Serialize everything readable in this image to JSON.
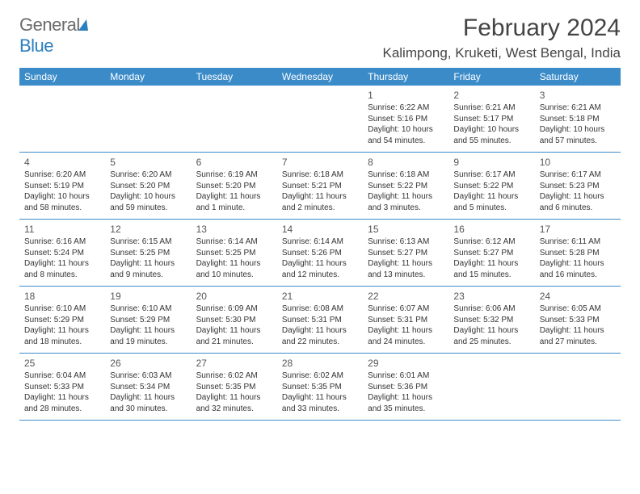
{
  "logo": {
    "part1": "General",
    "part2": "Blue"
  },
  "title": "February 2024",
  "location": "Kalimpong, Kruketi, West Bengal, India",
  "styling": {
    "header_bg": "#3b8bc9",
    "header_text": "#ffffff",
    "page_bg": "#ffffff",
    "text_color": "#333333",
    "logo_gray": "#6b6b6b",
    "logo_blue": "#2a7fbf",
    "title_fontsize": 30,
    "location_fontsize": 17,
    "dayhead_fontsize": 12,
    "cell_fontsize": 10,
    "border_color": "#3b8bc9"
  },
  "day_names": [
    "Sunday",
    "Monday",
    "Tuesday",
    "Wednesday",
    "Thursday",
    "Friday",
    "Saturday"
  ],
  "weeks": [
    [
      null,
      null,
      null,
      null,
      {
        "n": "1",
        "sr": "Sunrise: 6:22 AM",
        "ss": "Sunset: 5:16 PM",
        "d1": "Daylight: 10 hours",
        "d2": "and 54 minutes."
      },
      {
        "n": "2",
        "sr": "Sunrise: 6:21 AM",
        "ss": "Sunset: 5:17 PM",
        "d1": "Daylight: 10 hours",
        "d2": "and 55 minutes."
      },
      {
        "n": "3",
        "sr": "Sunrise: 6:21 AM",
        "ss": "Sunset: 5:18 PM",
        "d1": "Daylight: 10 hours",
        "d2": "and 57 minutes."
      }
    ],
    [
      {
        "n": "4",
        "sr": "Sunrise: 6:20 AM",
        "ss": "Sunset: 5:19 PM",
        "d1": "Daylight: 10 hours",
        "d2": "and 58 minutes."
      },
      {
        "n": "5",
        "sr": "Sunrise: 6:20 AM",
        "ss": "Sunset: 5:20 PM",
        "d1": "Daylight: 10 hours",
        "d2": "and 59 minutes."
      },
      {
        "n": "6",
        "sr": "Sunrise: 6:19 AM",
        "ss": "Sunset: 5:20 PM",
        "d1": "Daylight: 11 hours",
        "d2": "and 1 minute."
      },
      {
        "n": "7",
        "sr": "Sunrise: 6:18 AM",
        "ss": "Sunset: 5:21 PM",
        "d1": "Daylight: 11 hours",
        "d2": "and 2 minutes."
      },
      {
        "n": "8",
        "sr": "Sunrise: 6:18 AM",
        "ss": "Sunset: 5:22 PM",
        "d1": "Daylight: 11 hours",
        "d2": "and 3 minutes."
      },
      {
        "n": "9",
        "sr": "Sunrise: 6:17 AM",
        "ss": "Sunset: 5:22 PM",
        "d1": "Daylight: 11 hours",
        "d2": "and 5 minutes."
      },
      {
        "n": "10",
        "sr": "Sunrise: 6:17 AM",
        "ss": "Sunset: 5:23 PM",
        "d1": "Daylight: 11 hours",
        "d2": "and 6 minutes."
      }
    ],
    [
      {
        "n": "11",
        "sr": "Sunrise: 6:16 AM",
        "ss": "Sunset: 5:24 PM",
        "d1": "Daylight: 11 hours",
        "d2": "and 8 minutes."
      },
      {
        "n": "12",
        "sr": "Sunrise: 6:15 AM",
        "ss": "Sunset: 5:25 PM",
        "d1": "Daylight: 11 hours",
        "d2": "and 9 minutes."
      },
      {
        "n": "13",
        "sr": "Sunrise: 6:14 AM",
        "ss": "Sunset: 5:25 PM",
        "d1": "Daylight: 11 hours",
        "d2": "and 10 minutes."
      },
      {
        "n": "14",
        "sr": "Sunrise: 6:14 AM",
        "ss": "Sunset: 5:26 PM",
        "d1": "Daylight: 11 hours",
        "d2": "and 12 minutes."
      },
      {
        "n": "15",
        "sr": "Sunrise: 6:13 AM",
        "ss": "Sunset: 5:27 PM",
        "d1": "Daylight: 11 hours",
        "d2": "and 13 minutes."
      },
      {
        "n": "16",
        "sr": "Sunrise: 6:12 AM",
        "ss": "Sunset: 5:27 PM",
        "d1": "Daylight: 11 hours",
        "d2": "and 15 minutes."
      },
      {
        "n": "17",
        "sr": "Sunrise: 6:11 AM",
        "ss": "Sunset: 5:28 PM",
        "d1": "Daylight: 11 hours",
        "d2": "and 16 minutes."
      }
    ],
    [
      {
        "n": "18",
        "sr": "Sunrise: 6:10 AM",
        "ss": "Sunset: 5:29 PM",
        "d1": "Daylight: 11 hours",
        "d2": "and 18 minutes."
      },
      {
        "n": "19",
        "sr": "Sunrise: 6:10 AM",
        "ss": "Sunset: 5:29 PM",
        "d1": "Daylight: 11 hours",
        "d2": "and 19 minutes."
      },
      {
        "n": "20",
        "sr": "Sunrise: 6:09 AM",
        "ss": "Sunset: 5:30 PM",
        "d1": "Daylight: 11 hours",
        "d2": "and 21 minutes."
      },
      {
        "n": "21",
        "sr": "Sunrise: 6:08 AM",
        "ss": "Sunset: 5:31 PM",
        "d1": "Daylight: 11 hours",
        "d2": "and 22 minutes."
      },
      {
        "n": "22",
        "sr": "Sunrise: 6:07 AM",
        "ss": "Sunset: 5:31 PM",
        "d1": "Daylight: 11 hours",
        "d2": "and 24 minutes."
      },
      {
        "n": "23",
        "sr": "Sunrise: 6:06 AM",
        "ss": "Sunset: 5:32 PM",
        "d1": "Daylight: 11 hours",
        "d2": "and 25 minutes."
      },
      {
        "n": "24",
        "sr": "Sunrise: 6:05 AM",
        "ss": "Sunset: 5:33 PM",
        "d1": "Daylight: 11 hours",
        "d2": "and 27 minutes."
      }
    ],
    [
      {
        "n": "25",
        "sr": "Sunrise: 6:04 AM",
        "ss": "Sunset: 5:33 PM",
        "d1": "Daylight: 11 hours",
        "d2": "and 28 minutes."
      },
      {
        "n": "26",
        "sr": "Sunrise: 6:03 AM",
        "ss": "Sunset: 5:34 PM",
        "d1": "Daylight: 11 hours",
        "d2": "and 30 minutes."
      },
      {
        "n": "27",
        "sr": "Sunrise: 6:02 AM",
        "ss": "Sunset: 5:35 PM",
        "d1": "Daylight: 11 hours",
        "d2": "and 32 minutes."
      },
      {
        "n": "28",
        "sr": "Sunrise: 6:02 AM",
        "ss": "Sunset: 5:35 PM",
        "d1": "Daylight: 11 hours",
        "d2": "and 33 minutes."
      },
      {
        "n": "29",
        "sr": "Sunrise: 6:01 AM",
        "ss": "Sunset: 5:36 PM",
        "d1": "Daylight: 11 hours",
        "d2": "and 35 minutes."
      },
      null,
      null
    ]
  ]
}
